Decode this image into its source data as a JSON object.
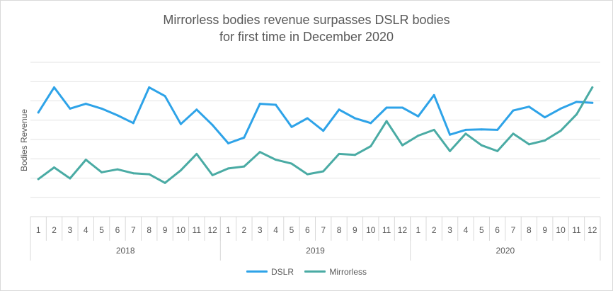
{
  "chart_data": {
    "type": "line",
    "title_line1": "Mirrorless bodies revenue surpasses DSLR bodies",
    "title_line2": "for first time in December 2020",
    "xlabel": "",
    "ylabel": "Bodies Revenue",
    "grid": true,
    "legend_position": "bottom",
    "categories": [
      "1",
      "2",
      "3",
      "4",
      "5",
      "6",
      "7",
      "8",
      "9",
      "10",
      "11",
      "12",
      "1",
      "2",
      "3",
      "4",
      "5",
      "6",
      "7",
      "8",
      "9",
      "10",
      "11",
      "12",
      "1",
      "2",
      "3",
      "4",
      "5",
      "6",
      "7",
      "8",
      "9",
      "10",
      "11",
      "12"
    ],
    "groups": [
      {
        "label": "2018",
        "count": 12
      },
      {
        "label": "2019",
        "count": 12
      },
      {
        "label": "2020",
        "count": 12
      }
    ],
    "ylim": [
      0,
      8
    ],
    "series": [
      {
        "name": "DSLR",
        "color": "#2ea3e8",
        "values": [
          5.4,
          6.7,
          5.6,
          5.85,
          5.6,
          5.25,
          4.85,
          6.7,
          6.25,
          4.8,
          5.55,
          4.75,
          3.8,
          4.1,
          5.85,
          5.8,
          4.65,
          5.1,
          4.45,
          5.55,
          5.1,
          4.85,
          5.65,
          5.65,
          5.2,
          6.3,
          4.25,
          4.5,
          4.52,
          4.5,
          5.5,
          5.7,
          5.15,
          5.6,
          5.95,
          5.9
        ]
      },
      {
        "name": "Mirrorless",
        "color": "#4aaba4",
        "values": [
          1.95,
          2.55,
          1.98,
          2.95,
          2.3,
          2.45,
          2.25,
          2.2,
          1.75,
          2.4,
          3.25,
          2.15,
          2.5,
          2.6,
          3.35,
          2.95,
          2.75,
          2.2,
          2.35,
          3.25,
          3.2,
          3.65,
          4.95,
          3.7,
          4.2,
          4.5,
          3.4,
          4.3,
          3.7,
          3.4,
          4.3,
          3.75,
          3.95,
          4.45,
          5.3,
          6.7
        ]
      }
    ]
  }
}
